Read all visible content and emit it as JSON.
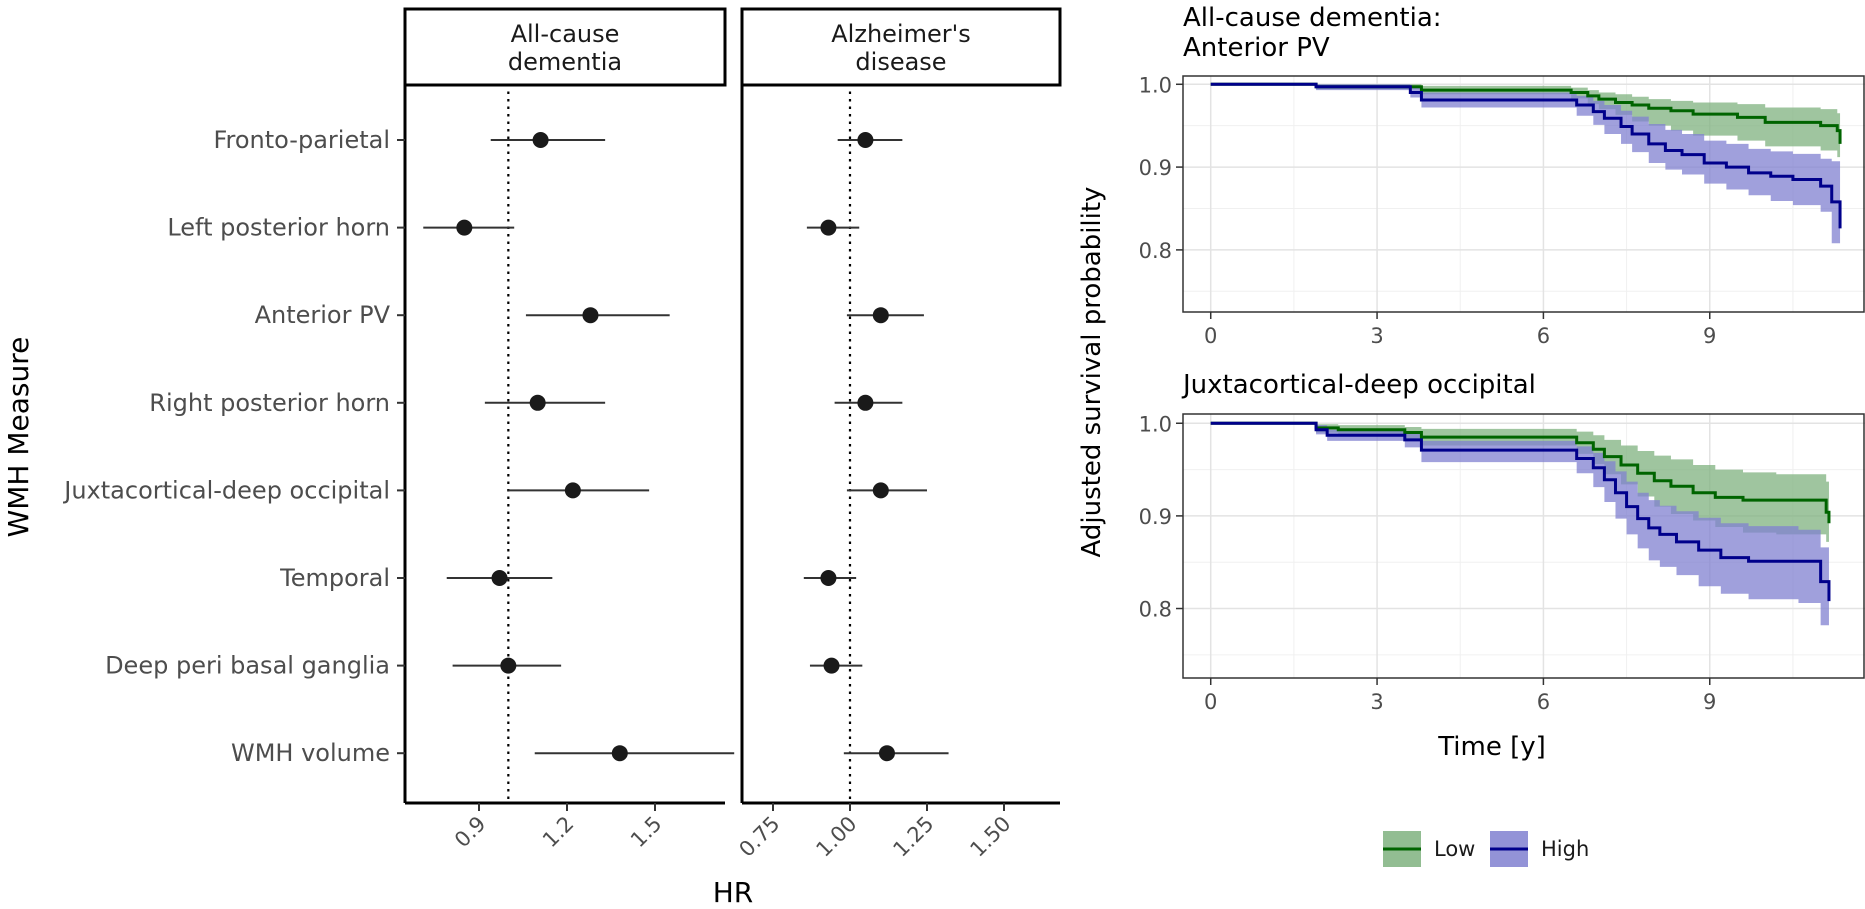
{
  "chart_data": [
    {
      "type": "scatter",
      "variant": "forest-plot",
      "facet": "All-cause\ndementia",
      "categories": [
        "Fronto-parietal",
        "Left posterior horn",
        "Anterior PV",
        "Right posterior horn",
        "Juxtacortical-deep occipital",
        "Temporal",
        "Deep peri basal ganglia",
        "WMH volume"
      ],
      "estimates": [
        1.11,
        0.85,
        1.28,
        1.1,
        1.22,
        0.97,
        1.0,
        1.38
      ],
      "ci_low": [
        0.94,
        0.71,
        1.06,
        0.92,
        1.0,
        0.79,
        0.81,
        1.09
      ],
      "ci_high": [
        1.33,
        1.02,
        1.55,
        1.33,
        1.48,
        1.15,
        1.18,
        1.77
      ],
      "xlim": [
        0.65,
        1.87
      ],
      "xticks": [
        "0.9",
        "1.2",
        "1.5"
      ],
      "reference_line": 1.0,
      "ylabel": "WMH Measure"
    },
    {
      "type": "scatter",
      "variant": "forest-plot",
      "facet": "Alzheimer's\ndisease",
      "categories": [
        "Fronto-parietal",
        "Left posterior horn",
        "Anterior PV",
        "Right posterior horn",
        "Juxtacortical-deep occipital",
        "Temporal",
        "Deep peri basal ganglia",
        "WMH volume"
      ],
      "estimates": [
        1.05,
        0.93,
        1.1,
        1.05,
        1.1,
        0.93,
        0.94,
        1.12
      ],
      "ci_low": [
        0.96,
        0.86,
        0.99,
        0.95,
        0.99,
        0.85,
        0.87,
        0.98
      ],
      "ci_high": [
        1.17,
        1.03,
        1.24,
        1.17,
        1.25,
        1.02,
        1.04,
        1.32
      ],
      "xlim": [
        0.69,
        1.64
      ],
      "xticks": [
        "0.75",
        "1.00",
        "1.25",
        "1.50"
      ],
      "reference_line": 1.0,
      "xlabel": "HR"
    },
    {
      "type": "line",
      "variant": "step-survival-with-ci",
      "title": "All-cause dementia:\nAnterior PV",
      "xticks": [
        "0",
        "3",
        "6",
        "9"
      ],
      "yticks": [
        "1.0",
        "0.9",
        "0.8"
      ],
      "xlim": [
        -0.5,
        11.8
      ],
      "ylim": [
        0.725,
        1.01
      ],
      "series": [
        {
          "name": "Low",
          "color": "#006400",
          "fill": "#7fb27f",
          "x": [
            0,
            1.7,
            1.9,
            3.4,
            3.8,
            6.3,
            6.5,
            6.8,
            7.0,
            7.3,
            7.6,
            7.9,
            8.3,
            8.7,
            9.5,
            10.0,
            11.0,
            11.3
          ],
          "y": [
            1.0,
            1.0,
            0.997,
            0.997,
            0.993,
            0.993,
            0.99,
            0.986,
            0.982,
            0.978,
            0.975,
            0.971,
            0.968,
            0.964,
            0.96,
            0.954,
            0.95,
            0.944
          ],
          "lo": [
            1.0,
            1.0,
            0.994,
            0.994,
            0.988,
            0.988,
            0.983,
            0.976,
            0.97,
            0.963,
            0.955,
            0.95,
            0.944,
            0.938,
            0.932,
            0.925,
            0.92,
            0.912
          ],
          "hi": [
            1.0,
            1.0,
            1.0,
            1.0,
            0.998,
            0.998,
            0.996,
            0.993,
            0.99,
            0.988,
            0.985,
            0.982,
            0.98,
            0.978,
            0.976,
            0.972,
            0.97,
            0.965
          ],
          "end_y": 0.928
        },
        {
          "name": "High",
          "color": "#00008b",
          "fill": "#8080d0",
          "x": [
            0,
            1.7,
            1.9,
            3.3,
            3.6,
            3.8,
            6.3,
            6.6,
            6.9,
            7.1,
            7.4,
            7.6,
            7.9,
            8.2,
            8.5,
            8.9,
            9.3,
            9.7,
            10.1,
            10.5,
            11.0,
            11.2
          ],
          "y": [
            1.0,
            1.0,
            0.997,
            0.997,
            0.99,
            0.981,
            0.981,
            0.975,
            0.967,
            0.959,
            0.949,
            0.94,
            0.928,
            0.92,
            0.915,
            0.905,
            0.9,
            0.893,
            0.889,
            0.885,
            0.877,
            0.858
          ],
          "lo": [
            1.0,
            1.0,
            0.993,
            0.993,
            0.984,
            0.972,
            0.972,
            0.962,
            0.951,
            0.94,
            0.928,
            0.918,
            0.905,
            0.897,
            0.891,
            0.88,
            0.873,
            0.866,
            0.859,
            0.854,
            0.846,
            0.808
          ],
          "hi": [
            1.0,
            1.0,
            1.0,
            1.0,
            0.996,
            0.99,
            0.99,
            0.986,
            0.98,
            0.975,
            0.968,
            0.961,
            0.952,
            0.945,
            0.94,
            0.932,
            0.928,
            0.922,
            0.919,
            0.916,
            0.91,
            0.907
          ],
          "end_y": 0.826
        }
      ]
    },
    {
      "type": "line",
      "variant": "step-survival-with-ci",
      "title": "Juxtacortical-deep occipital",
      "xlabel": "Time [y]",
      "ylabel": "Adjusted survival probability",
      "xticks": [
        "0",
        "3",
        "6",
        "9"
      ],
      "yticks": [
        "1.0",
        "0.9",
        "0.8"
      ],
      "xlim": [
        -0.5,
        11.8
      ],
      "ylim": [
        0.725,
        1.01
      ],
      "series": [
        {
          "name": "Low",
          "color": "#006400",
          "fill": "#7fb27f",
          "x": [
            0,
            1.7,
            1.9,
            2.3,
            3.5,
            3.8,
            6.3,
            6.6,
            6.9,
            7.1,
            7.4,
            7.7,
            8.0,
            8.3,
            8.7,
            9.1,
            9.6,
            10.2,
            11.1
          ],
          "y": [
            1.0,
            1.0,
            0.995,
            0.993,
            0.99,
            0.985,
            0.985,
            0.979,
            0.972,
            0.964,
            0.955,
            0.946,
            0.938,
            0.932,
            0.925,
            0.92,
            0.917,
            0.917,
            0.904
          ],
          "lo": [
            1.0,
            1.0,
            0.99,
            0.987,
            0.983,
            0.976,
            0.976,
            0.967,
            0.956,
            0.945,
            0.934,
            0.921,
            0.91,
            0.902,
            0.895,
            0.888,
            0.882,
            0.88,
            0.872
          ],
          "hi": [
            1.0,
            1.0,
            0.999,
            0.998,
            0.996,
            0.994,
            0.994,
            0.991,
            0.987,
            0.982,
            0.976,
            0.97,
            0.965,
            0.961,
            0.955,
            0.95,
            0.947,
            0.945,
            0.937
          ],
          "end_y": 0.892
        },
        {
          "name": "High",
          "color": "#00008b",
          "fill": "#8080d0",
          "x": [
            0,
            1.7,
            1.9,
            2.1,
            3.5,
            3.8,
            6.3,
            6.6,
            6.9,
            7.1,
            7.3,
            7.5,
            7.7,
            7.9,
            8.1,
            8.4,
            8.8,
            9.2,
            9.7,
            10.6,
            11.0
          ],
          "y": [
            1.0,
            1.0,
            0.993,
            0.987,
            0.982,
            0.971,
            0.971,
            0.962,
            0.952,
            0.939,
            0.925,
            0.91,
            0.897,
            0.887,
            0.88,
            0.872,
            0.863,
            0.855,
            0.851,
            0.851,
            0.829
          ],
          "lo": [
            1.0,
            1.0,
            0.988,
            0.981,
            0.974,
            0.958,
            0.958,
            0.946,
            0.931,
            0.915,
            0.897,
            0.88,
            0.865,
            0.852,
            0.845,
            0.836,
            0.824,
            0.816,
            0.81,
            0.806,
            0.782
          ],
          "hi": [
            1.0,
            1.0,
            0.998,
            0.993,
            0.989,
            0.981,
            0.981,
            0.975,
            0.968,
            0.959,
            0.948,
            0.937,
            0.925,
            0.917,
            0.911,
            0.905,
            0.898,
            0.892,
            0.889,
            0.885,
            0.866
          ],
          "end_y": 0.808
        }
      ]
    }
  ],
  "legend": {
    "items": [
      {
        "label": "Low",
        "color": "#006400",
        "fill": "#7fb27f"
      },
      {
        "label": "High",
        "color": "#00008b",
        "fill": "#8080d0"
      }
    ]
  }
}
